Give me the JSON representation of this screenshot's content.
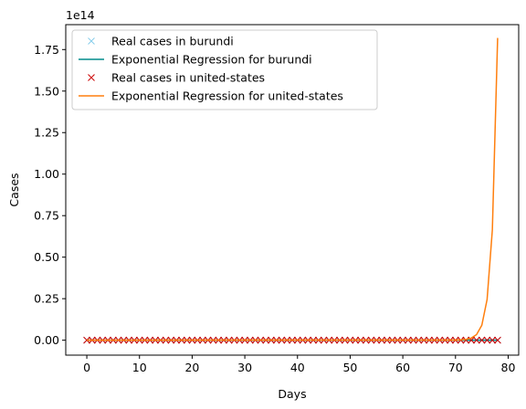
{
  "chart_data": {
    "type": "line",
    "title": "",
    "xlabel": "Days",
    "ylabel": "Cases",
    "y_offset_label": "1e14",
    "xlim": [
      -4,
      82
    ],
    "ylim": [
      -0.09,
      1.9
    ],
    "y_unit_multiplier": 100000000000000.0,
    "x_ticks": [
      0,
      10,
      20,
      30,
      40,
      50,
      60,
      70,
      80
    ],
    "y_ticks": [
      0.0,
      0.25,
      0.5,
      0.75,
      1.0,
      1.25,
      1.5,
      1.75
    ],
    "y_tick_labels": [
      "0.00",
      "0.25",
      "0.50",
      "0.75",
      "1.00",
      "1.25",
      "1.50",
      "1.75"
    ],
    "grid": false,
    "legend_position": "upper-left",
    "series": [
      {
        "name": "Real cases in burundi",
        "style": "marker-x",
        "color": "#87ceeb",
        "x_start": 0,
        "x_end": 78,
        "values_note_scale_1e14": 0,
        "values": "zeros"
      },
      {
        "name": "Exponential Regression for burundi",
        "style": "line",
        "color": "#008b8b",
        "x_start": 0,
        "x_end": 78,
        "values": "zeros"
      },
      {
        "name": "Real cases in united-states",
        "style": "marker-x",
        "color": "#cc0000",
        "x_start": 0,
        "x_end": 78,
        "values": "zeros"
      },
      {
        "name": "Exponential Regression for united-states",
        "style": "line",
        "color": "#ff7f0e",
        "x": [
          0,
          70,
          71,
          72,
          73,
          74,
          75,
          76,
          77,
          78
        ],
        "values": [
          0,
          0.001,
          0.002,
          0.005,
          0.013,
          0.034,
          0.09,
          0.245,
          0.665,
          1.82
        ]
      }
    ]
  }
}
